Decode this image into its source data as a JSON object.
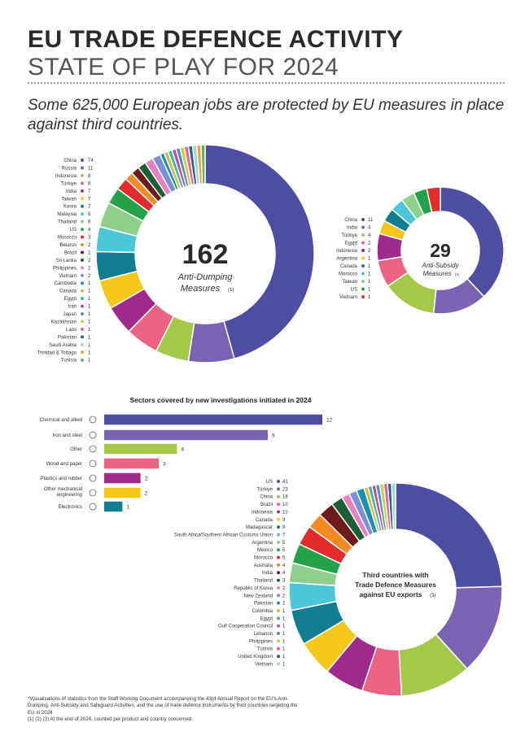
{
  "header": {
    "title_line1": "EU TRADE DEFENCE ACTIVITY",
    "title_line2": "STATE OF PLAY FOR 2024",
    "tagline": "Some 625,000 European jobs are protected by EU measures in place against third countries."
  },
  "palette": [
    "#4d4da3",
    "#7b62b2",
    "#a3c84a",
    "#ec6383",
    "#a02a8b",
    "#f6c61a",
    "#127c91",
    "#4ec6da",
    "#8fcf8c",
    "#23a24a",
    "#e22b2b",
    "#f38a22",
    "#6f1b1b",
    "#1c5e36",
    "#e780c2",
    "#7b8fd6",
    "#1893b5",
    "#d8b83a",
    "#3fb5a8",
    "#b74fa3",
    "#5a8ac6",
    "#c2d04a",
    "#f05d8c",
    "#355e8c",
    "#9bd3e0",
    "#e6a340",
    "#6aae62",
    "#8a5ec2",
    "#ce3d5d",
    "#2c7c7a",
    "#b0a0d8",
    "#5c3d8a",
    "#9aaa2a",
    "#de5f2a",
    "#3a9ad9",
    "#7a3a6a",
    "#c9d8a0"
  ],
  "chart_data": [
    {
      "type": "pie",
      "title": "Anti-Dumping Measures",
      "total": "162",
      "center_line1": "Anti-Dumping",
      "center_line2": "Measures",
      "note": "(1)",
      "categories": [
        "China",
        "Russia",
        "Indonesia",
        "Türkiye",
        "India",
        "Taiwan",
        "Korea",
        "Malaysia",
        "Thailand",
        "US",
        "Morocco",
        "Belarus",
        "Brazil",
        "Sri Lanka",
        "Philippines",
        "Vietnam",
        "Cambodia",
        "Canada",
        "Egypt",
        "Iran",
        "Japan",
        "Kazakhstan",
        "Laos",
        "Pakistan",
        "Saudi Arabia",
        "Trinidad & Tobago",
        "Tunisia"
      ],
      "values": [
        74,
        11,
        8,
        8,
        7,
        7,
        7,
        6,
        6,
        4,
        3,
        2,
        2,
        2,
        2,
        2,
        1,
        1,
        1,
        1,
        1,
        1,
        1,
        1,
        1,
        1,
        1
      ]
    },
    {
      "type": "pie",
      "title": "Anti-Subsidy Measures",
      "total": "29",
      "center_line1": "Anti-Subsidy",
      "center_line2": "Measures",
      "note": "(2)",
      "categories": [
        "China",
        "India",
        "Türkiye",
        "Egypt",
        "Indonesia",
        "Argentina",
        "Canada",
        "Morocco",
        "Taiwan",
        "US",
        "Vietnam"
      ],
      "values": [
        11,
        4,
        4,
        2,
        2,
        1,
        1,
        1,
        1,
        1,
        1
      ]
    },
    {
      "type": "bar",
      "title": "Sectors covered by new investigations initiated in 2024",
      "categories": [
        "Chemical and allied",
        "Iron and steel",
        "Other",
        "Wood and paper",
        "Plastics and rubber",
        "Other mechanical engineering",
        "Electronics"
      ],
      "values": [
        12,
        9,
        4,
        3,
        2,
        2,
        1
      ],
      "colors": [
        "#4d4da3",
        "#7b62b2",
        "#a3c84a",
        "#ec6383",
        "#a02a8b",
        "#f6c61a",
        "#127c91"
      ]
    },
    {
      "type": "pie",
      "title": "Third countries with Trade Defence Measures against EU exports",
      "center_line1": "Third countries with",
      "center_line2": "Trade Defence Measures",
      "center_line3": "against EU exports",
      "note": "(3)",
      "categories": [
        "US",
        "Türkiye",
        "China",
        "Brazil",
        "Indonesia",
        "Canada",
        "Madagascar",
        "South Africa/Southern African Customs Union",
        "Argentina",
        "Mexico",
        "Morocco",
        "Australia",
        "India",
        "Thailand",
        "Republic of Korea",
        "New Zealand",
        "Pakistan",
        "Colombia",
        "Egypt",
        "Gulf Cooperation Council",
        "Lebanon",
        "Philippines",
        "Tunisia",
        "United Kingdom",
        "Vietnam"
      ],
      "values": [
        41,
        23,
        18,
        10,
        10,
        9,
        9,
        7,
        5,
        5,
        5,
        4,
        4,
        3,
        2,
        2,
        2,
        1,
        1,
        1,
        1,
        1,
        1,
        1,
        1
      ]
    }
  ],
  "footnote": {
    "line1": "*Visualisations of statistics from the Staff Working Document accompanying the 43rd Annual Report on the EU's Anti-Dumping, Anti-Subsidy and Safeguard Activities, and the use of trade defence instruments by third countries targeting the EU in 2024",
    "line2": "(1) (2) (3) At the end of 2024, counted per product and country concerned."
  }
}
